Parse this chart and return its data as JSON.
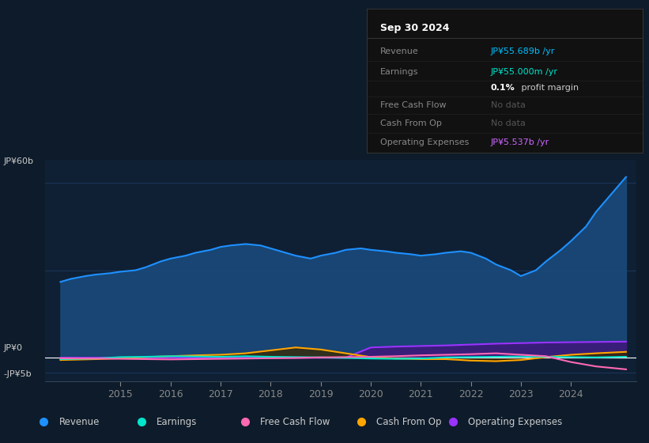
{
  "bg_color": "#0d1b2a",
  "chart_area_color": "#0f2035",
  "grid_color": "#1e3a5f",
  "title": "Sep 30 2024",
  "y_label_60b": "JP¥60b",
  "y_label_0": "JP¥0",
  "y_label_neg5b": "-JP¥5b",
  "ylim": [
    -8000000000,
    68000000000
  ],
  "xlim_start": 2013.5,
  "xlim_end": 2025.3,
  "x_ticks": [
    2015,
    2016,
    2017,
    2018,
    2019,
    2020,
    2021,
    2022,
    2023,
    2024
  ],
  "hline_60b": 60000000000,
  "hline_30b": 30000000000,
  "hline_0": 0,
  "hline_neg5b": -5000000000,
  "revenue": {
    "color": "#1e90ff",
    "fill_color": "#1a4a7a",
    "label": "Revenue",
    "x": [
      2013.8,
      2014.0,
      2014.3,
      2014.5,
      2014.8,
      2015.0,
      2015.3,
      2015.5,
      2015.8,
      2016.0,
      2016.3,
      2016.5,
      2016.8,
      2017.0,
      2017.2,
      2017.5,
      2017.8,
      2018.0,
      2018.3,
      2018.5,
      2018.8,
      2019.0,
      2019.3,
      2019.5,
      2019.8,
      2020.0,
      2020.3,
      2020.5,
      2020.8,
      2021.0,
      2021.3,
      2021.5,
      2021.8,
      2022.0,
      2022.3,
      2022.5,
      2022.8,
      2023.0,
      2023.3,
      2023.5,
      2023.8,
      2024.0,
      2024.3,
      2024.5,
      2024.8,
      2025.1
    ],
    "y": [
      26000000000,
      27000000000,
      28000000000,
      28500000000,
      29000000000,
      29500000000,
      30000000000,
      31000000000,
      33000000000,
      34000000000,
      35000000000,
      36000000000,
      37000000000,
      38000000000,
      38500000000,
      39000000000,
      38500000000,
      37500000000,
      36000000000,
      35000000000,
      34000000000,
      35000000000,
      36000000000,
      37000000000,
      37500000000,
      37000000000,
      36500000000,
      36000000000,
      35500000000,
      35000000000,
      35500000000,
      36000000000,
      36500000000,
      36000000000,
      34000000000,
      32000000000,
      30000000000,
      28000000000,
      30000000000,
      33000000000,
      37000000000,
      40000000000,
      45000000000,
      50000000000,
      56000000000,
      62000000000
    ]
  },
  "earnings": {
    "color": "#00e5cc",
    "label": "Earnings",
    "x": [
      2013.8,
      2014.5,
      2015.0,
      2015.5,
      2016.0,
      2016.5,
      2017.0,
      2017.5,
      2018.0,
      2018.5,
      2019.0,
      2019.5,
      2020.0,
      2020.5,
      2021.0,
      2021.5,
      2022.0,
      2022.5,
      2023.0,
      2023.5,
      2024.0,
      2024.5,
      2025.1
    ],
    "y": [
      -500000000,
      -300000000,
      200000000,
      300000000,
      500000000,
      400000000,
      300000000,
      500000000,
      300000000,
      200000000,
      100000000,
      -100000000,
      -300000000,
      -400000000,
      -300000000,
      100000000,
      200000000,
      300000000,
      400000000,
      300000000,
      200000000,
      100000000,
      300000000
    ]
  },
  "free_cash_flow": {
    "color": "#ff69b4",
    "label": "Free Cash Flow",
    "x": [
      2013.8,
      2014.5,
      2015.0,
      2015.5,
      2016.0,
      2016.5,
      2017.0,
      2017.5,
      2018.0,
      2018.5,
      2019.0,
      2019.5,
      2020.0,
      2020.5,
      2021.0,
      2021.5,
      2022.0,
      2022.5,
      2023.0,
      2023.5,
      2024.0,
      2024.5,
      2025.1
    ],
    "y": [
      -200000000,
      -300000000,
      -400000000,
      -500000000,
      -600000000,
      -500000000,
      -400000000,
      -300000000,
      -200000000,
      -100000000,
      100000000,
      200000000,
      300000000,
      500000000,
      800000000,
      1000000000,
      1200000000,
      1500000000,
      1000000000,
      500000000,
      -1500000000,
      -3000000000,
      -4000000000
    ]
  },
  "cash_from_op": {
    "color": "#ffa500",
    "fill_color": "#3a2800",
    "label": "Cash From Op",
    "x": [
      2013.8,
      2014.5,
      2015.0,
      2015.5,
      2016.0,
      2016.5,
      2017.0,
      2017.5,
      2018.0,
      2018.5,
      2019.0,
      2019.5,
      2020.0,
      2020.5,
      2021.0,
      2021.5,
      2022.0,
      2022.5,
      2023.0,
      2023.5,
      2024.0,
      2024.5,
      2025.1
    ],
    "y": [
      -800000000,
      -500000000,
      -200000000,
      200000000,
      500000000,
      800000000,
      1000000000,
      1500000000,
      2500000000,
      3500000000,
      2800000000,
      1500000000,
      200000000,
      -300000000,
      -500000000,
      -500000000,
      -1000000000,
      -1200000000,
      -800000000,
      200000000,
      1000000000,
      1500000000,
      2000000000
    ]
  },
  "operating_expenses": {
    "color": "#9933ff",
    "fill_color": "#3d1a7a",
    "label": "Operating Expenses",
    "x": [
      2013.8,
      2014.5,
      2015.0,
      2015.5,
      2016.0,
      2016.5,
      2017.0,
      2017.5,
      2018.0,
      2018.5,
      2019.0,
      2019.5,
      2020.0,
      2020.5,
      2021.0,
      2021.5,
      2022.0,
      2022.5,
      2023.0,
      2023.5,
      2024.0,
      2024.5,
      2025.1
    ],
    "y": [
      0,
      0,
      0,
      0,
      0,
      0,
      0,
      0,
      0,
      0,
      0,
      0,
      3500000000,
      3800000000,
      4000000000,
      4200000000,
      4500000000,
      4800000000,
      5000000000,
      5200000000,
      5300000000,
      5400000000,
      5500000000
    ]
  },
  "legend": [
    {
      "label": "Revenue",
      "color": "#1e90ff"
    },
    {
      "label": "Earnings",
      "color": "#00e5cc"
    },
    {
      "label": "Free Cash Flow",
      "color": "#ff69b4"
    },
    {
      "label": "Cash From Op",
      "color": "#ffa500"
    },
    {
      "label": "Operating Expenses",
      "color": "#9933ff"
    }
  ],
  "info_title": "Sep 30 2024",
  "info_rows": [
    {
      "label": "Revenue",
      "value": "JP¥55.689b /yr",
      "value_color": "#00bfff",
      "dimmed": false
    },
    {
      "label": "Earnings",
      "value": "JP¥55.000m /yr",
      "value_color": "#00e5cc",
      "dimmed": false
    },
    {
      "label": "",
      "value": "0.1% profit margin",
      "value_color": "#cccccc",
      "dimmed": false,
      "special": true
    },
    {
      "label": "Free Cash Flow",
      "value": "No data",
      "value_color": "#555555",
      "dimmed": true
    },
    {
      "label": "Cash From Op",
      "value": "No data",
      "value_color": "#555555",
      "dimmed": true
    },
    {
      "label": "Operating Expenses",
      "value": "JP¥5.537b /yr",
      "value_color": "#cc66ff",
      "dimmed": false
    }
  ]
}
